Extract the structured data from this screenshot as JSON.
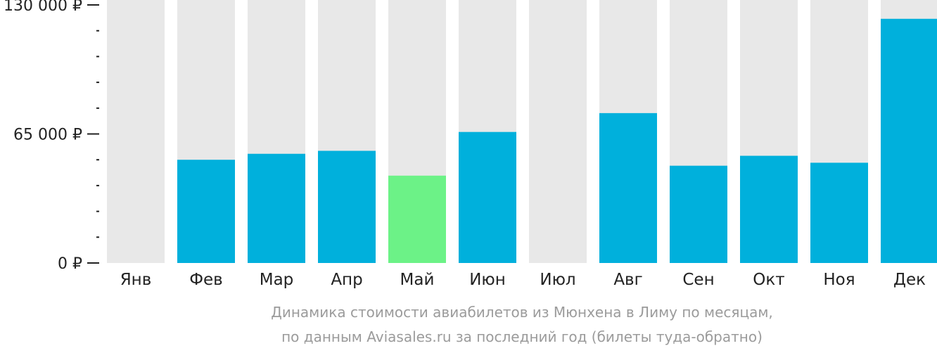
{
  "chart_data": {
    "type": "bar",
    "categories": [
      "Янв",
      "Фев",
      "Мар",
      "Апр",
      "Май",
      "Июн",
      "Июл",
      "Авг",
      "Сен",
      "Окт",
      "Ноя",
      "Дек"
    ],
    "values": [
      null,
      52000,
      55000,
      56500,
      44000,
      66000,
      null,
      75500,
      49000,
      54000,
      50500,
      123000
    ],
    "highlight_index": 4,
    "ylim": [
      0,
      130000
    ],
    "y_ticks": [
      {
        "value": 0,
        "label": "0 ₽"
      },
      {
        "value": 65000,
        "label": "65 000 ₽"
      },
      {
        "value": 130000,
        "label": "130 000 ₽"
      }
    ],
    "minor_tick_step": 13000,
    "colors": {
      "bar": "#00b0dc",
      "highlight": "#6cf287",
      "track": "#e8e8e8",
      "axis": "#222222"
    }
  },
  "caption": {
    "line1": "Динамика стоимости авиабилетов из Мюнхена в Лиму по месяцам,",
    "line2": "по данным Aviasales.ru за последний год (билеты туда-обратно)"
  }
}
